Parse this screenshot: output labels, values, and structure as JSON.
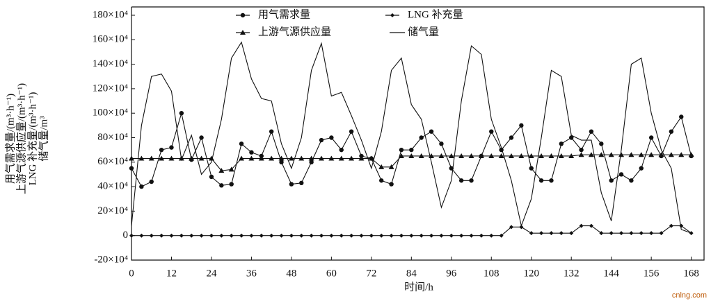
{
  "chart_data": {
    "type": "line",
    "y_axis_label": [
      "用气需求量/(m³·h⁻¹)",
      "上游气源供应量/(m³·h⁻¹)",
      "LNG 补充量/(m³·h⁻¹)",
      "储气量/m³"
    ],
    "x_axis_label": "时间/h",
    "watermark": "cnlng.com",
    "x": [
      0,
      3,
      6,
      9,
      12,
      15,
      18,
      21,
      24,
      27,
      30,
      33,
      36,
      39,
      42,
      45,
      48,
      51,
      54,
      57,
      60,
      63,
      66,
      69,
      72,
      75,
      78,
      81,
      84,
      87,
      90,
      93,
      96,
      99,
      102,
      105,
      108,
      111,
      114,
      117,
      120,
      123,
      126,
      129,
      132,
      135,
      138,
      141,
      144,
      147,
      150,
      153,
      156,
      159,
      162,
      165,
      168
    ],
    "xlim": [
      0,
      171
    ],
    "xticks": [
      0,
      12,
      24,
      36,
      48,
      60,
      72,
      84,
      96,
      108,
      120,
      132,
      144,
      156,
      168
    ],
    "ylim": [
      -200000,
      1800000
    ],
    "yticks": [
      {
        "value": -200000,
        "label": "-20×10⁴"
      },
      0,
      {
        "value": 200000,
        "label": "20×10⁴"
      },
      {
        "value": 400000,
        "label": "40×10⁴"
      },
      {
        "value": 600000,
        "label": "60×10⁴"
      },
      {
        "value": 800000,
        "label": "80×10⁴"
      },
      {
        "value": 1000000,
        "label": "100×10⁴"
      },
      {
        "value": 1200000,
        "label": "120×10⁴"
      },
      {
        "value": 1400000,
        "label": "140×10⁴"
      },
      {
        "value": 1600000,
        "label": "160×10⁴"
      },
      {
        "value": 1800000,
        "label": "180×10⁴"
      }
    ],
    "legend": "top",
    "series": [
      {
        "name": "用气需求量",
        "color": "#111111",
        "marker": "circle",
        "values": [
          550000,
          400000,
          440000,
          700000,
          720000,
          1000000,
          620000,
          800000,
          480000,
          410000,
          420000,
          750000,
          680000,
          650000,
          850000,
          600000,
          420000,
          430000,
          600000,
          780000,
          800000,
          700000,
          850000,
          650000,
          630000,
          450000,
          420000,
          700000,
          700000,
          800000,
          850000,
          750000,
          550000,
          450000,
          450000,
          650000,
          850000,
          700000,
          800000,
          900000,
          550000,
          450000,
          450000,
          750000,
          800000,
          700000,
          850000,
          750000,
          450000,
          500000,
          450000,
          550000,
          800000,
          650000,
          850000,
          970000,
          650000
        ]
      },
      {
        "name": "LNG 补充量",
        "color": "#111111",
        "marker": "diamond",
        "values": [
          0,
          0,
          0,
          0,
          0,
          0,
          0,
          0,
          0,
          0,
          0,
          0,
          0,
          0,
          0,
          0,
          0,
          0,
          0,
          0,
          0,
          0,
          0,
          0,
          0,
          0,
          0,
          0,
          0,
          0,
          0,
          0,
          0,
          0,
          0,
          0,
          0,
          0,
          70000,
          70000,
          20000,
          20000,
          20000,
          20000,
          20000,
          80000,
          80000,
          20000,
          20000,
          20000,
          20000,
          20000,
          20000,
          20000,
          80000,
          80000,
          20000
        ]
      },
      {
        "name": "上游气源供应量",
        "color": "#111111",
        "marker": "triangle",
        "values": [
          630000,
          630000,
          630000,
          630000,
          630000,
          630000,
          630000,
          630000,
          630000,
          530000,
          540000,
          630000,
          630000,
          630000,
          630000,
          630000,
          630000,
          630000,
          630000,
          630000,
          630000,
          630000,
          630000,
          630000,
          630000,
          560000,
          560000,
          650000,
          650000,
          650000,
          650000,
          650000,
          650000,
          650000,
          650000,
          650000,
          650000,
          650000,
          650000,
          650000,
          650000,
          650000,
          650000,
          650000,
          650000,
          660000,
          660000,
          660000,
          660000,
          660000,
          660000,
          660000,
          660000,
          660000,
          660000,
          660000,
          660000
        ]
      },
      {
        "name": "储气量",
        "color": "#111111",
        "marker": "none",
        "values": [
          80000,
          900000,
          1300000,
          1320000,
          1180000,
          620000,
          820000,
          500000,
          600000,
          950000,
          1450000,
          1580000,
          1280000,
          1120000,
          1100000,
          750000,
          550000,
          800000,
          1350000,
          1570000,
          1140000,
          1170000,
          980000,
          780000,
          550000,
          850000,
          1350000,
          1450000,
          1070000,
          950000,
          600000,
          230000,
          450000,
          1100000,
          1550000,
          1480000,
          950000,
          720000,
          450000,
          80000,
          300000,
          800000,
          1350000,
          1300000,
          820000,
          780000,
          780000,
          350000,
          120000,
          700000,
          1400000,
          1450000,
          1000000,
          700000,
          550000,
          50000,
          20000
        ]
      }
    ]
  }
}
